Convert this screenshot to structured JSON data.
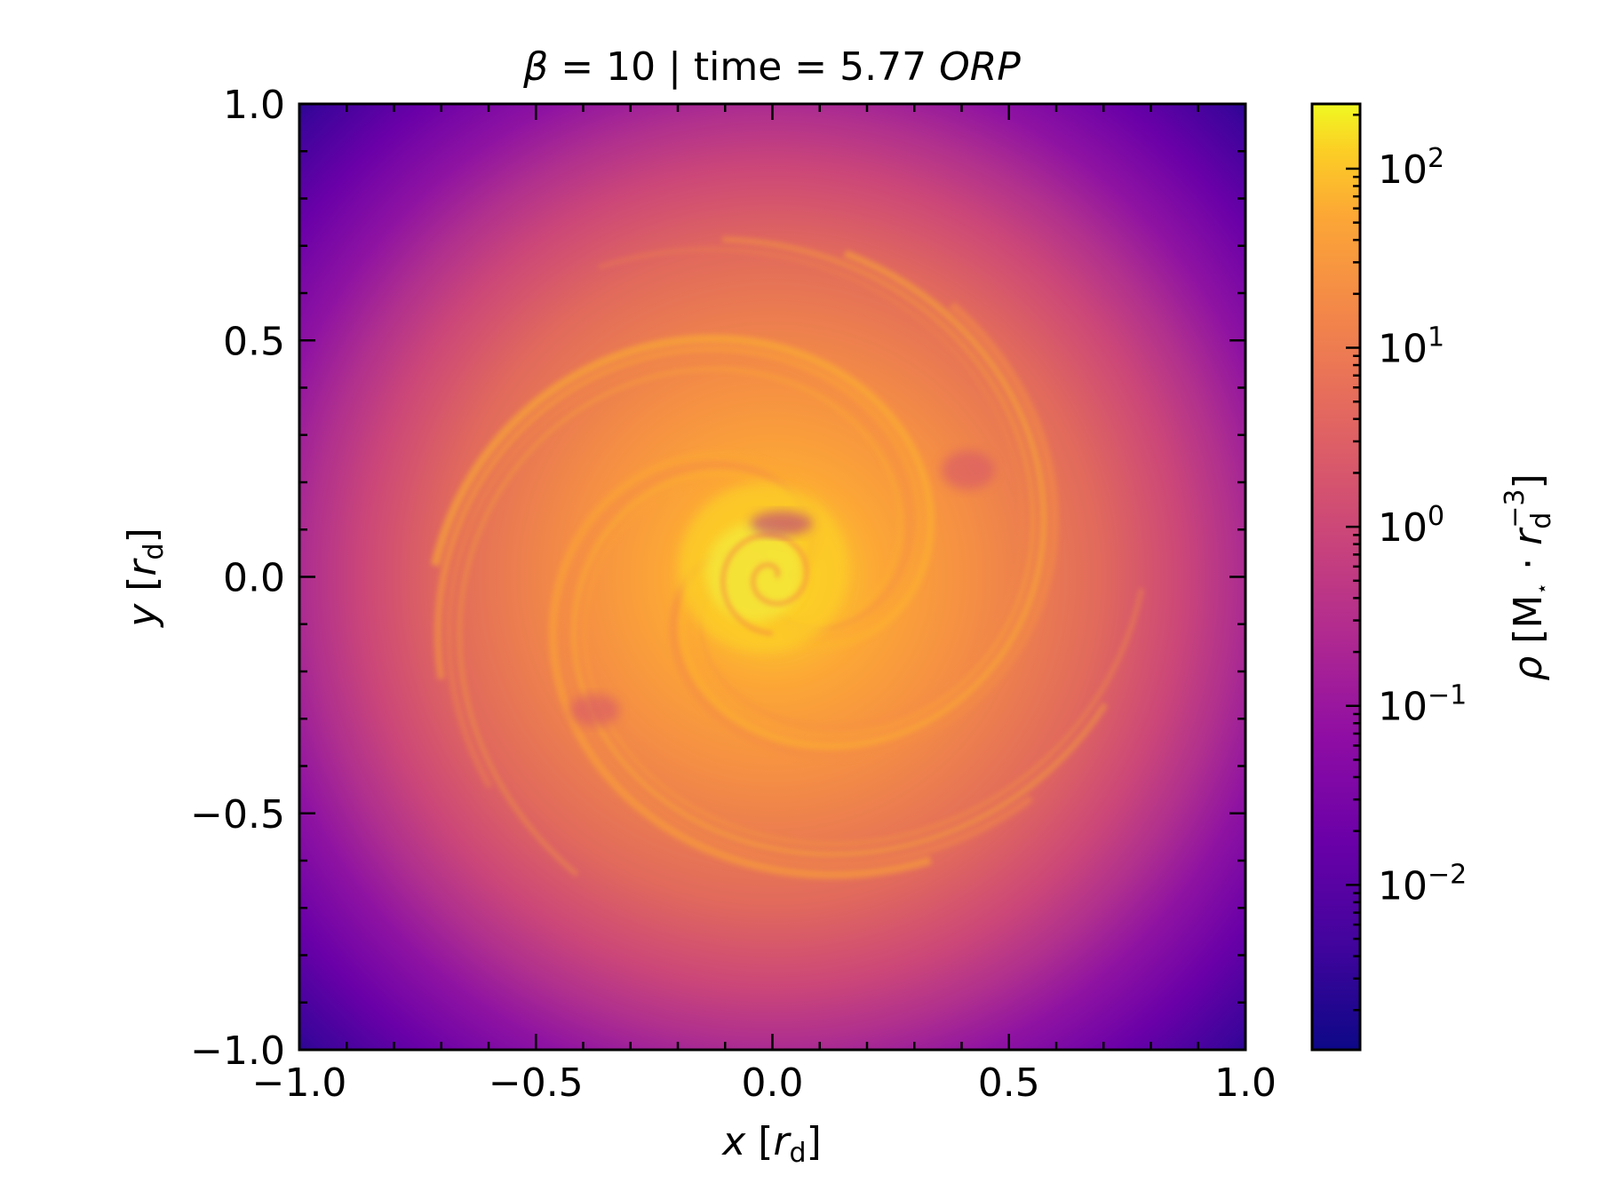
{
  "chart_data": {
    "type": "heatmap",
    "title": {
      "prefix": "β",
      "middle": " = 10 | time = 5.77 ",
      "suffix": "ORP"
    },
    "xlabel": {
      "var": "x",
      "open": " [",
      "sym": "r",
      "sub": "d",
      "close": "]"
    },
    "ylabel": {
      "var": "y",
      "open": " [",
      "sym": "r",
      "sub": "d",
      "close": "]"
    },
    "xlim": [
      -1.0,
      1.0
    ],
    "ylim": [
      -1.0,
      1.0
    ],
    "xticks": [
      -1.0,
      -0.5,
      0.0,
      0.5,
      1.0
    ],
    "yticks": [
      -1.0,
      -0.5,
      0.0,
      0.5,
      1.0
    ],
    "xtick_labels": [
      "−1.0",
      "−0.5",
      "0.0",
      "0.5",
      "1.0"
    ],
    "ytick_labels": [
      "−1.0",
      "−0.5",
      "0.0",
      "0.5",
      "1.0"
    ],
    "colormap": "plasma",
    "colorbar": {
      "scale": "log",
      "range": [
        0.0012,
        230
      ],
      "ticks": [
        0.01,
        0.1,
        1,
        10,
        100
      ],
      "tick_labels": [
        {
          "base": "10",
          "exp": "−2"
        },
        {
          "base": "10",
          "exp": "−1"
        },
        {
          "base": "10",
          "exp": "0"
        },
        {
          "base": "10",
          "exp": "1"
        },
        {
          "base": "10",
          "exp": "2"
        }
      ],
      "label": {
        "var": "ρ",
        "open": " [M",
        "star": "⋆",
        "dot": " · ",
        "sym": "r",
        "sub": "d",
        "sup": "−3",
        "close": "]"
      }
    },
    "field": {
      "description_free": true,
      "center": [
        0.0,
        0.0
      ],
      "spiral_arms": 3
    },
    "colors": {
      "frame": "#000000",
      "low": "#0d0887",
      "high": "#f0f921"
    }
  }
}
